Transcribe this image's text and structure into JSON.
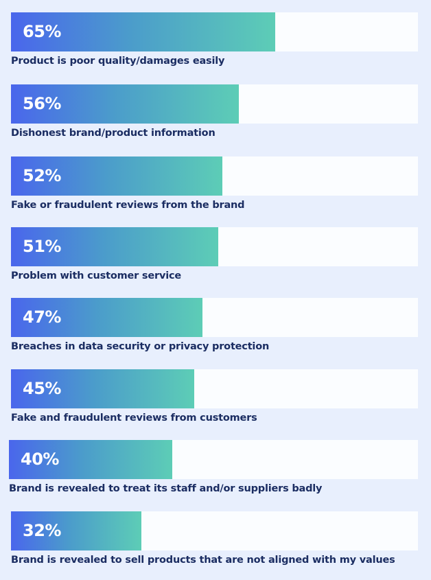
{
  "chart_data": {
    "type": "bar",
    "orientation": "horizontal",
    "categories": [
      "Product is poor quality/damages easily",
      "Dishonest brand/product information",
      "Fake or fraudulent reviews from the brand",
      "Problem with customer service",
      "Breaches in data security or privacy protection",
      "Fake and fraudulent reviews from customers",
      "Brand is revealed to treat its staff and/or suppliers badly",
      "Brand is revealed to sell products that are not aligned with my values"
    ],
    "values": [
      65,
      56,
      52,
      51,
      47,
      45,
      40,
      32
    ],
    "value_labels": [
      "65%",
      "56%",
      "52%",
      "51%",
      "47%",
      "45%",
      "40%",
      "32%"
    ],
    "xlim": [
      0,
      100
    ],
    "grid": false,
    "colors": {
      "gradient_start": "#4a66ec",
      "gradient_end": "#5dcdb6",
      "track": "#fbfdff",
      "label": "#1b2d62",
      "background": "#e8effd"
    }
  }
}
